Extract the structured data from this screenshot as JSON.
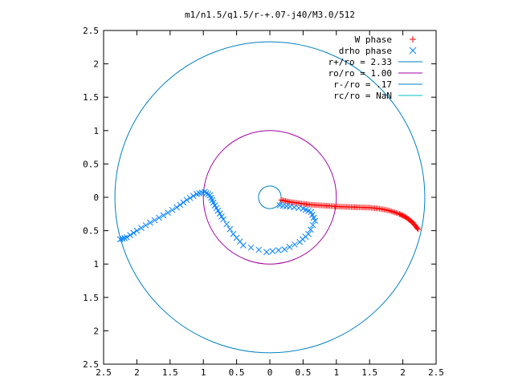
{
  "chart_data": {
    "type": "scatter",
    "title": "m1/n1.5/q1.5/r-+.07-j40/M3.0/512",
    "xlim": [
      -2.5,
      2.5
    ],
    "ylim": [
      -2.5,
      2.5
    ],
    "x_ticks": [
      -2.5,
      -2,
      -1.5,
      -1,
      -0.5,
      0,
      0.5,
      1,
      1.5,
      2,
      2.5
    ],
    "x_tick_labels": [
      "2.5",
      "2",
      "1.5",
      "1",
      "0.5",
      "0",
      "0.5",
      "1",
      "1.5",
      "2",
      "2.5"
    ],
    "y_ticks": [
      2.5,
      2,
      1.5,
      1,
      0.5,
      0,
      -0.5,
      -1,
      -1.5,
      -2,
      -2.5
    ],
    "y_tick_labels": [
      "2.5",
      "2",
      "1.5",
      "1",
      "0.5",
      "0",
      "0.5",
      "1",
      "1.5",
      "2",
      "2.5"
    ],
    "grid": false,
    "legend_position": "top-right",
    "series": [
      {
        "name": "W phase",
        "kind": "marker-plus",
        "color": "#ff0000",
        "points": [
          [
            0.17,
            -0.04
          ],
          [
            0.3,
            -0.07
          ],
          [
            0.45,
            -0.09
          ],
          [
            0.6,
            -0.11
          ],
          [
            0.75,
            -0.12
          ],
          [
            0.9,
            -0.13
          ],
          [
            1.05,
            -0.14
          ],
          [
            1.2,
            -0.145
          ],
          [
            1.35,
            -0.15
          ],
          [
            1.5,
            -0.155
          ],
          [
            1.65,
            -0.17
          ],
          [
            1.8,
            -0.2
          ],
          [
            1.95,
            -0.25
          ],
          [
            2.05,
            -0.3
          ],
          [
            2.15,
            -0.38
          ],
          [
            2.23,
            -0.48
          ]
        ]
      },
      {
        "name": "drho phase",
        "kind": "marker-x",
        "color": "#0080ff",
        "points": [
          [
            -2.25,
            -0.63
          ],
          [
            -2.15,
            -0.6
          ],
          [
            -2.0,
            -0.5
          ],
          [
            -1.8,
            -0.38
          ],
          [
            -1.6,
            -0.27
          ],
          [
            -1.4,
            -0.15
          ],
          [
            -1.25,
            -0.04
          ],
          [
            -1.1,
            0.05
          ],
          [
            -0.98,
            0.08
          ],
          [
            -0.9,
            0.03
          ],
          [
            -0.85,
            -0.08
          ],
          [
            -0.78,
            -0.2
          ],
          [
            -0.7,
            -0.33
          ],
          [
            -0.55,
            -0.55
          ],
          [
            -0.4,
            -0.72
          ],
          [
            -0.05,
            -0.82
          ],
          [
            0.22,
            -0.78
          ],
          [
            0.45,
            -0.67
          ],
          [
            0.58,
            -0.55
          ],
          [
            0.68,
            -0.35
          ],
          [
            0.62,
            -0.22
          ],
          [
            0.5,
            -0.17
          ],
          [
            0.3,
            -0.14
          ],
          [
            0.15,
            -0.12
          ]
        ]
      },
      {
        "name": "r+/ro = 2.33",
        "kind": "circle",
        "color": "#0080c0",
        "radius": 2.33
      },
      {
        "name": "ro/ro = 1.00",
        "kind": "circle",
        "color": "#a000a0",
        "radius": 1.0
      },
      {
        "name": "r-/ro = .17",
        "kind": "circle",
        "color": "#0080c0",
        "radius": 0.17
      },
      {
        "name": "rc/ro = NaN",
        "kind": "circle",
        "color": "#00c0c0",
        "radius": null
      }
    ]
  }
}
